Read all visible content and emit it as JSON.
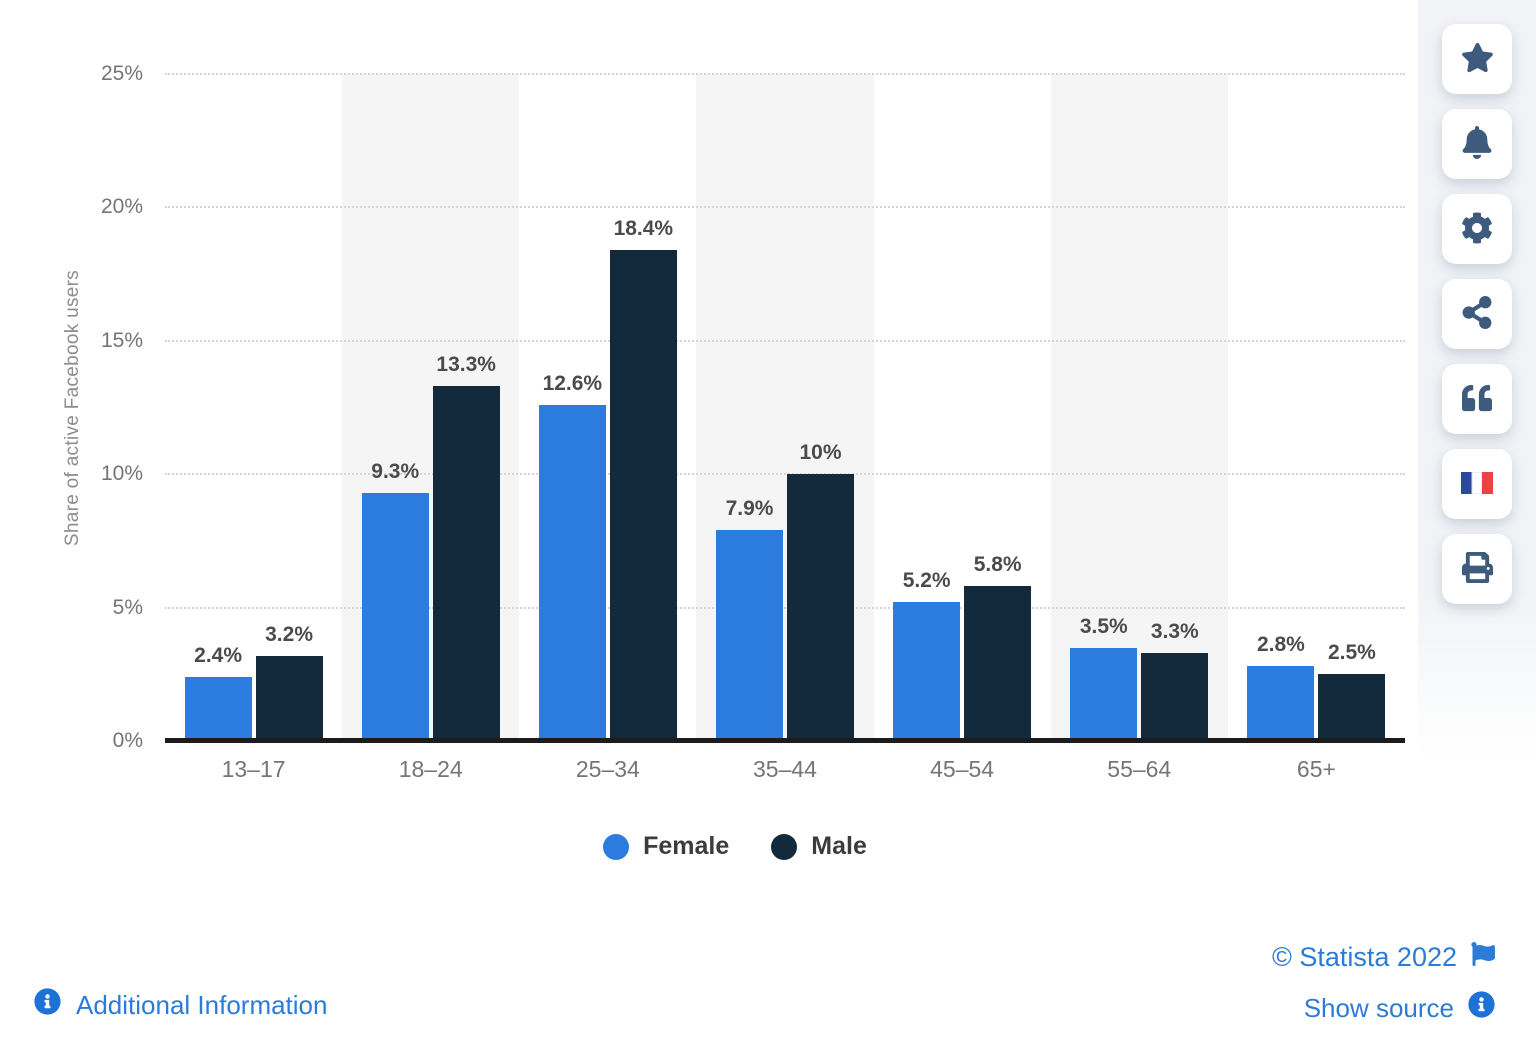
{
  "chart_data": {
    "type": "bar",
    "title": "",
    "xlabel": "",
    "ylabel": "Share of active Facebook users",
    "categories": [
      "13–17",
      "18–24",
      "25–34",
      "35–44",
      "45–54",
      "55–64",
      "65+"
    ],
    "series": [
      {
        "name": "Female",
        "color": "#2b7cde",
        "values": [
          2.4,
          9.3,
          12.6,
          7.9,
          5.2,
          3.5,
          2.8
        ],
        "labels": [
          "2.4%",
          "9.3%",
          "12.6%",
          "7.9%",
          "5.2%",
          "3.5%",
          "2.8%"
        ]
      },
      {
        "name": "Male",
        "color": "#122a3c",
        "values": [
          3.2,
          13.3,
          18.4,
          10,
          5.8,
          3.3,
          2.5
        ],
        "labels": [
          "3.2%",
          "13.3%",
          "18.4%",
          "10%",
          "5.8%",
          "3.3%",
          "2.5%"
        ]
      }
    ],
    "ylim": [
      0,
      25
    ],
    "yticks": [
      0,
      5,
      10,
      15,
      20,
      25
    ],
    "ytick_labels": [
      "0%",
      "5%",
      "10%",
      "15%",
      "20%",
      "25%"
    ],
    "grid": "horizontal dotted",
    "plot_bands_on_categories": [
      1,
      3,
      5
    ],
    "plot_band_color": "#f5f5f5",
    "legend_position": "bottom"
  },
  "sidebar": {
    "buttons": [
      {
        "name": "favorite",
        "icon": "star-icon"
      },
      {
        "name": "alerts",
        "icon": "bell-icon"
      },
      {
        "name": "settings",
        "icon": "gear-icon"
      },
      {
        "name": "share",
        "icon": "share-icon"
      },
      {
        "name": "cite",
        "icon": "quote-icon"
      },
      {
        "name": "language-french",
        "icon": "french-flag-icon"
      },
      {
        "name": "print",
        "icon": "printer-icon"
      }
    ]
  },
  "footer": {
    "additional_info_label": "Additional Information",
    "copyright_label": "© Statista 2022",
    "show_source_label": "Show source",
    "info_icon": "info-circle-icon",
    "flag_icon": "flag-icon"
  },
  "colors": {
    "female_bar": "#2b7cde",
    "male_bar": "#122a3c",
    "link_blue": "#2b7cd9",
    "info_icon_blue": "#1d72d6",
    "sidebar_icon": "#3e5b7d",
    "plot_band": "#f5f5f5",
    "gridline": "#d5d5d5",
    "axis_line": "#1c1c1c",
    "tick_text": "#757575",
    "data_label_text": "#4b4b4b",
    "flag_france_blue": "#2b479f",
    "flag_france_red": "#ef4044"
  }
}
